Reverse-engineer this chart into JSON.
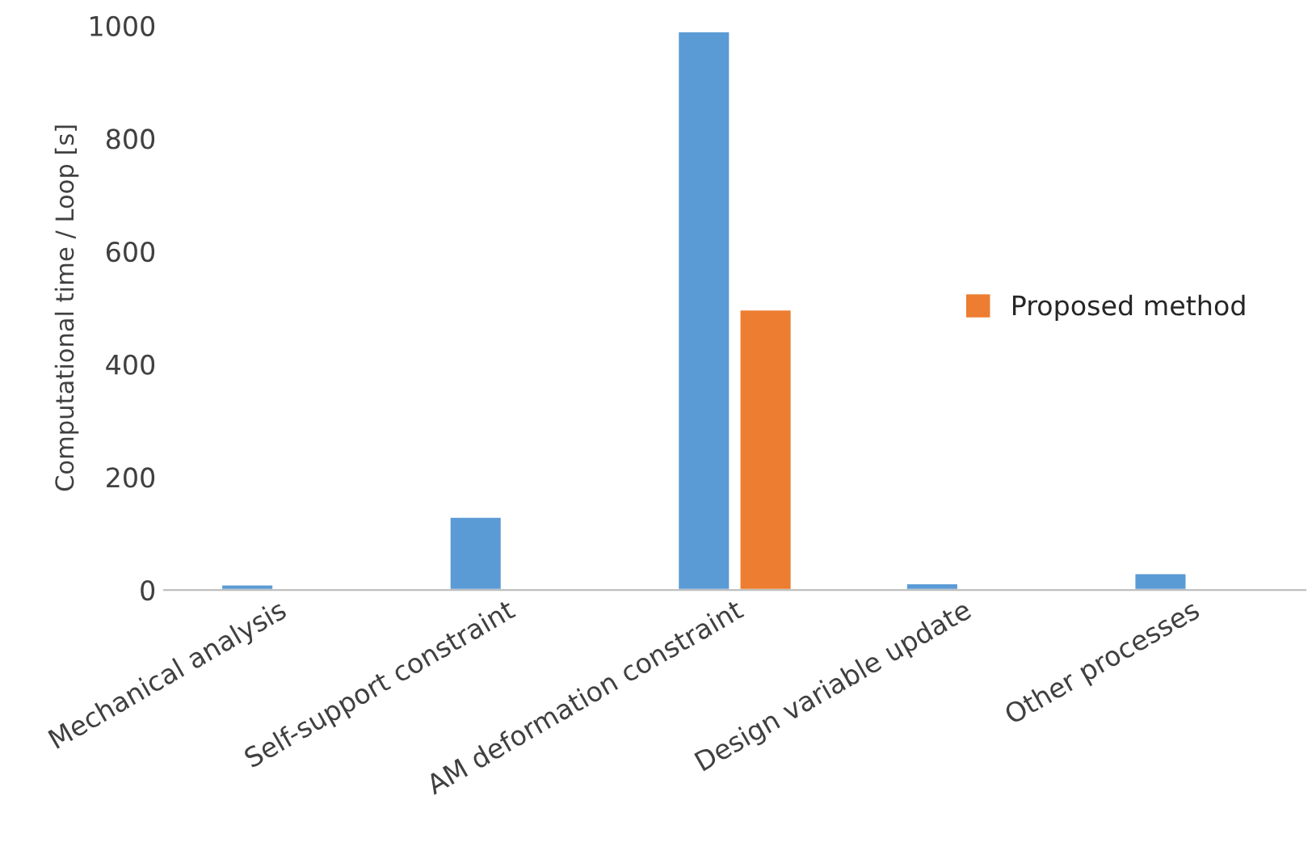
{
  "chart_data": {
    "type": "bar",
    "ylabel": "Computational time / Loop [s]",
    "categories": [
      "Mechanical analysis",
      "Self-support constraint",
      "AM deformation constraint",
      "Design variable update",
      "Other processes"
    ],
    "series": [
      {
        "color": "#5b9bd5",
        "values": [
          10,
          130,
          990,
          12,
          30
        ]
      },
      {
        "name": "Proposed method",
        "color": "#ed7d31",
        "values": [
          null,
          null,
          497,
          null,
          null
        ]
      }
    ],
    "ylim": [
      0,
      1000
    ],
    "yticks": [
      0,
      200,
      400,
      600,
      800,
      1000
    ],
    "grid": false,
    "legend": "right"
  }
}
